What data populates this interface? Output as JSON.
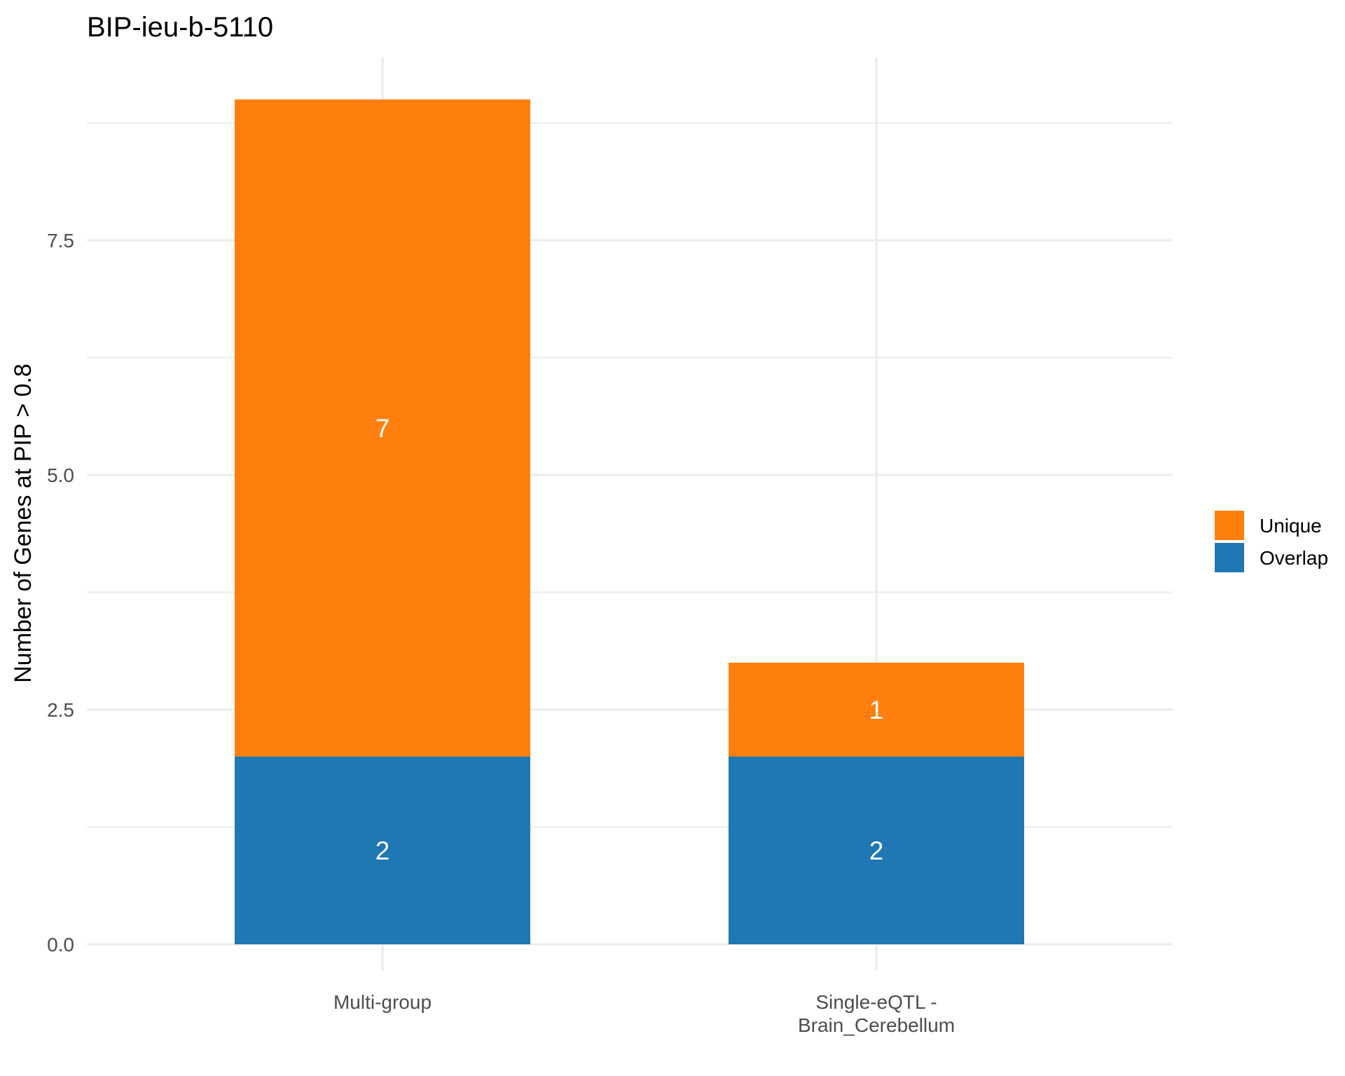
{
  "chart_data": {
    "type": "bar",
    "stacked": true,
    "title": "BIP-ieu-b-5110",
    "xlabel": "",
    "ylabel": "Number of Genes at PIP > 0.8",
    "categories": [
      "Multi-group",
      "Single-eQTL - Brain_Cerebellum"
    ],
    "category_label_lines": [
      [
        "Multi-group"
      ],
      [
        "Single-eQTL -",
        "Brain_Cerebellum"
      ]
    ],
    "series": [
      {
        "name": "Overlap",
        "values": [
          2,
          2
        ],
        "color": "#1f77b4"
      },
      {
        "name": "Unique",
        "values": [
          7,
          1
        ],
        "color": "#ff7f0e"
      }
    ],
    "data_labels": [
      [
        "2",
        "2"
      ],
      [
        "7",
        "1"
      ]
    ],
    "legend_order": [
      "Unique",
      "Overlap"
    ],
    "legend_position": "right",
    "ylim": [
      0,
      9
    ],
    "yticks": [
      0.0,
      2.5,
      5.0,
      7.5
    ],
    "ytick_labels": [
      "0.0",
      "2.5",
      "5.0",
      "7.5"
    ],
    "grid": true
  }
}
